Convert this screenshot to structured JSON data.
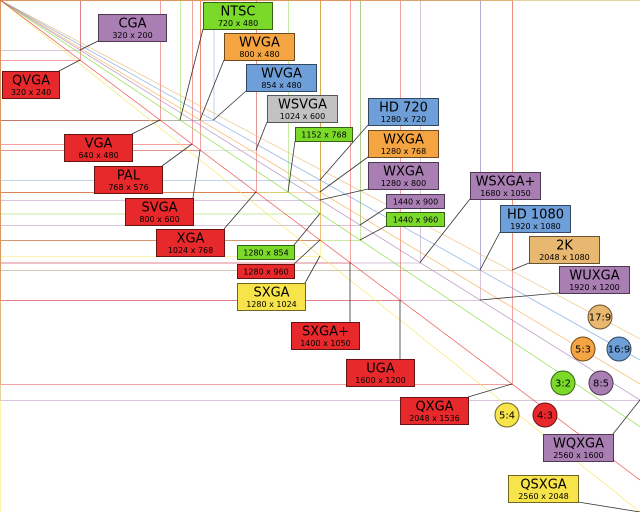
{
  "standards": [
    {
      "name": "CGA",
      "resolution": "320 x 200",
      "color": "#a97eb3"
    },
    {
      "name": "QVGA",
      "resolution": "320 x 240",
      "color": "#e8292c"
    },
    {
      "name": "NTSC",
      "resolution": "720 x 480",
      "color": "#7bd92a"
    },
    {
      "name": "WVGA",
      "resolution": "800 x 480",
      "color": "#f5a442"
    },
    {
      "name": "WVGA",
      "resolution": "854 x 480",
      "color": "#6f9fd8"
    },
    {
      "name": "WSVGA",
      "resolution": "1024 x 600",
      "color": "#c2c2c2"
    },
    {
      "name": "HD 720",
      "resolution": "1280 x 720",
      "color": "#6f9fd8"
    },
    {
      "resolution": "1152 x 768",
      "color": "#7bd92a"
    },
    {
      "name": "WXGA",
      "resolution": "1280 x 768",
      "color": "#f5a442"
    },
    {
      "name": "WXGA",
      "resolution": "1280 x 800",
      "color": "#a97eb3"
    },
    {
      "name": "VGA",
      "resolution": "640 x 480",
      "color": "#e8292c"
    },
    {
      "name": "PAL",
      "resolution": "768 x 576",
      "color": "#e8292c"
    },
    {
      "name": "SVGA",
      "resolution": "800 x 600",
      "color": "#e8292c"
    },
    {
      "name": "XGA",
      "resolution": "1024 x 768",
      "color": "#e8292c"
    },
    {
      "name": "WSXGA+",
      "resolution": "1680 x 1050",
      "color": "#a97eb3"
    },
    {
      "resolution": "1440 x 900",
      "color": "#a97eb3"
    },
    {
      "resolution": "1440 x 960",
      "color": "#7bd92a"
    },
    {
      "name": "HD 1080",
      "resolution": "1920 x 1080",
      "color": "#6f9fd8"
    },
    {
      "name": "2K",
      "resolution": "2048 x 1080",
      "color": "#e9b870"
    },
    {
      "resolution": "1280 x 854",
      "color": "#7bd92a"
    },
    {
      "resolution": "1280 x 960",
      "color": "#e8292c"
    },
    {
      "name": "SXGA",
      "resolution": "1280 x 1024",
      "color": "#f7e34a"
    },
    {
      "name": "WUXGA",
      "resolution": "1920 x 1200",
      "color": "#a97eb3"
    },
    {
      "name": "SXGA+",
      "resolution": "1400 x 1050",
      "color": "#e8292c"
    },
    {
      "name": "UGA",
      "resolution": "1600 x 1200",
      "color": "#e8292c"
    },
    {
      "name": "QXGA",
      "resolution": "2048 x 1536",
      "color": "#e8292c"
    },
    {
      "name": "WQXGA",
      "resolution": "2560 x 1600",
      "color": "#a97eb3"
    },
    {
      "name": "QSXGA",
      "resolution": "2560 x 2048",
      "color": "#f7e34a"
    }
  ],
  "aspect_ratios": [
    {
      "label": "17:9",
      "color": "#e9b870"
    },
    {
      "label": "5:3",
      "color": "#f5a442"
    },
    {
      "label": "16:9",
      "color": "#6f9fd8"
    },
    {
      "label": "3:2",
      "color": "#7bd92a"
    },
    {
      "label": "8:5",
      "color": "#a97eb3"
    },
    {
      "label": "5:4",
      "color": "#f7e34a"
    },
    {
      "label": "4:3",
      "color": "#e8292c"
    }
  ]
}
